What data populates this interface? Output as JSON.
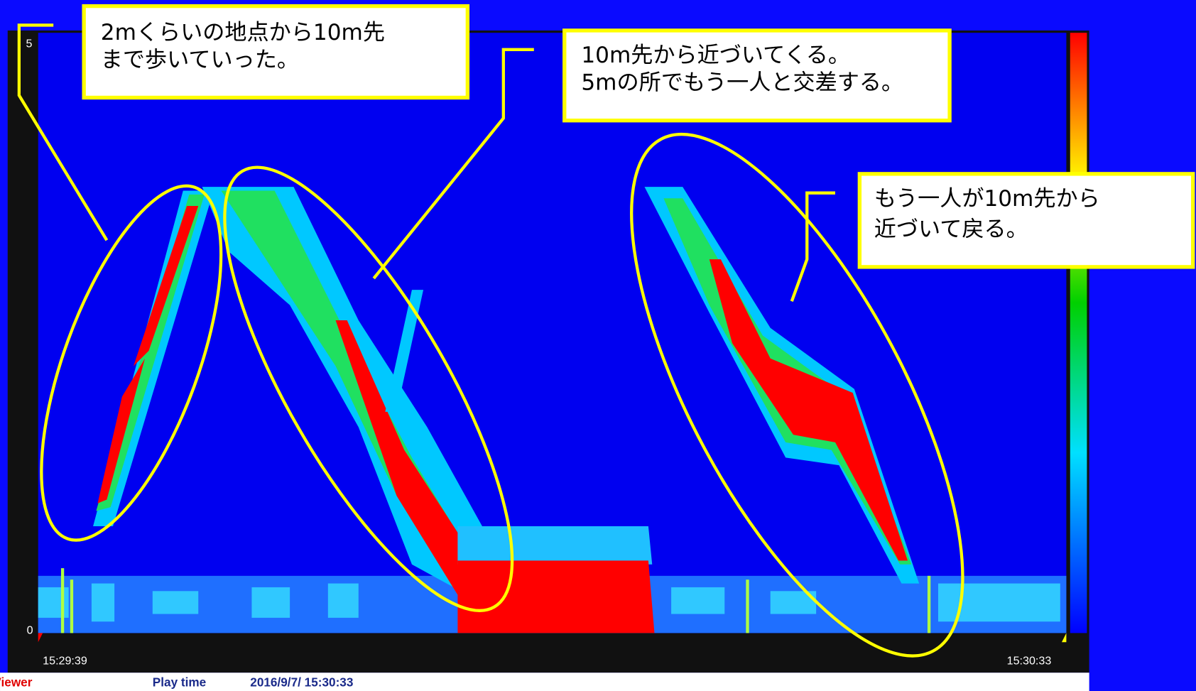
{
  "axis": {
    "y_top": "5",
    "y_bottom": "0",
    "x_start": "15:29:39",
    "x_end": "15:30:33"
  },
  "callouts": [
    {
      "lines": [
        "2mくらいの地点から10m先",
        "まで歩いていった。"
      ]
    },
    {
      "lines": [
        "10m先から近づいてくる。",
        "5mの所でもう一人と交差する。"
      ]
    },
    {
      "lines": [
        "もう一人が10m先から",
        "近づいて戻る。"
      ]
    }
  ],
  "footer": {
    "app": "Viewer",
    "play_time_label": "Play time",
    "play_time": "2016/9/7/ 15:30:33"
  }
}
